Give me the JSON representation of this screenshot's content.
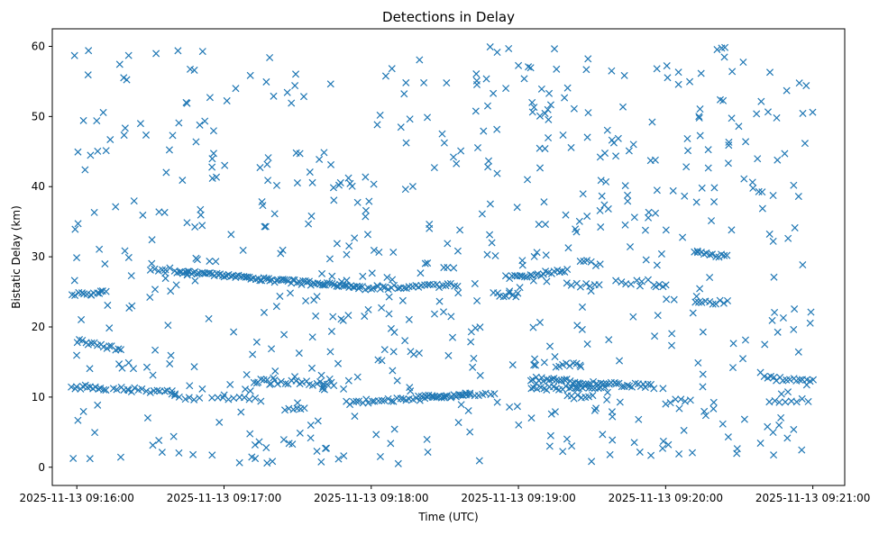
{
  "chart_data": {
    "type": "scatter",
    "title": "Detections in Delay",
    "xlabel": "Time (UTC)",
    "ylabel": "Bistatic Delay (km)",
    "marker": "x",
    "color": "#1f77b4",
    "grid": false,
    "xlim": [
      "2025-11-13T09:15:50",
      "2025-11-13T09:21:13"
    ],
    "ylim": [
      -2.6,
      62.5
    ],
    "x_ticks": [
      {
        "t": "2025-11-13T09:16:00",
        "label": "2025-11-13 09:16:00"
      },
      {
        "t": "2025-11-13T09:17:00",
        "label": "2025-11-13 09:17:00"
      },
      {
        "t": "2025-11-13T09:18:00",
        "label": "2025-11-13 09:18:00"
      },
      {
        "t": "2025-11-13T09:19:00",
        "label": "2025-11-13 09:19:00"
      },
      {
        "t": "2025-11-13T09:20:00",
        "label": "2025-11-13 09:20:00"
      },
      {
        "t": "2025-11-13T09:21:00",
        "label": "2025-11-13 09:21:00"
      }
    ],
    "y_ticks": [
      0,
      10,
      20,
      30,
      40,
      50,
      60
    ],
    "tracks": [
      {
        "t_start": "2025-11-13T09:15:58",
        "t_end": "2025-11-13T09:16:12",
        "y_start": 24.6,
        "y_end": 24.9,
        "points": 12
      },
      {
        "t_start": "2025-11-13T09:16:30",
        "t_end": "2025-11-13T09:16:38",
        "y_start": 28.1,
        "y_end": 28.2,
        "points": 6
      },
      {
        "t_start": "2025-11-13T09:16:40",
        "t_end": "2025-11-13T09:17:55",
        "y_start": 27.9,
        "y_end": 25.6,
        "points": 90
      },
      {
        "t_start": "2025-11-13T09:17:55",
        "t_end": "2025-11-13T09:18:35",
        "y_start": 25.5,
        "y_end": 26.0,
        "points": 34
      },
      {
        "t_start": "2025-11-13T09:18:50",
        "t_end": "2025-11-13T09:19:00",
        "y_start": 24.6,
        "y_end": 24.6,
        "points": 9
      },
      {
        "t_start": "2025-11-13T09:18:55",
        "t_end": "2025-11-13T09:19:20",
        "y_start": 27.0,
        "y_end": 28.0,
        "points": 24
      },
      {
        "t_start": "2025-11-13T09:19:20",
        "t_end": "2025-11-13T09:19:33",
        "y_start": 26.1,
        "y_end": 25.8,
        "points": 8
      },
      {
        "t_start": "2025-11-13T09:19:40",
        "t_end": "2025-11-13T09:19:50",
        "y_start": 26.5,
        "y_end": 26.3,
        "points": 6
      },
      {
        "t_start": "2025-11-13T09:19:55",
        "t_end": "2025-11-13T09:20:00",
        "y_start": 26.0,
        "y_end": 26.0,
        "points": 5
      },
      {
        "t_start": "2025-11-13T09:20:12",
        "t_end": "2025-11-13T09:20:25",
        "y_start": 30.5,
        "y_end": 30.0,
        "points": 12
      },
      {
        "t_start": "2025-11-13T09:20:12",
        "t_end": "2025-11-13T09:20:25",
        "y_start": 23.3,
        "y_end": 23.6,
        "points": 10
      },
      {
        "t_start": "2025-11-13T09:19:25",
        "t_end": "2025-11-13T09:19:33",
        "y_start": 29.5,
        "y_end": 28.8,
        "points": 6
      },
      {
        "t_start": "2025-11-13T09:16:00",
        "t_end": "2025-11-13T09:16:18",
        "y_start": 18.0,
        "y_end": 16.8,
        "points": 16
      },
      {
        "t_start": "2025-11-13T09:15:58",
        "t_end": "2025-11-13T09:16:12",
        "y_start": 11.5,
        "y_end": 11.3,
        "points": 14
      },
      {
        "t_start": "2025-11-13T09:16:15",
        "t_end": "2025-11-13T09:16:40",
        "y_start": 11.2,
        "y_end": 10.7,
        "points": 18
      },
      {
        "t_start": "2025-11-13T09:16:40",
        "t_end": "2025-11-13T09:16:50",
        "y_start": 10.0,
        "y_end": 9.7,
        "points": 6
      },
      {
        "t_start": "2025-11-13T09:16:55",
        "t_end": "2025-11-13T09:17:15",
        "y_start": 10.0,
        "y_end": 9.5,
        "points": 10
      },
      {
        "t_start": "2025-11-13T09:17:12",
        "t_end": "2025-11-13T09:17:45",
        "y_start": 12.3,
        "y_end": 11.8,
        "points": 24
      },
      {
        "t_start": "2025-11-13T09:17:25",
        "t_end": "2025-11-13T09:17:33",
        "y_start": 8.4,
        "y_end": 8.2,
        "points": 6
      },
      {
        "t_start": "2025-11-13T09:17:50",
        "t_end": "2025-11-13T09:18:40",
        "y_start": 9.2,
        "y_end": 10.4,
        "points": 40
      },
      {
        "t_start": "2025-11-13T09:18:20",
        "t_end": "2025-11-13T09:18:50",
        "y_start": 9.8,
        "y_end": 10.4,
        "points": 20
      },
      {
        "t_start": "2025-11-13T09:19:05",
        "t_end": "2025-11-13T09:19:55",
        "y_start": 12.6,
        "y_end": 11.5,
        "points": 48
      },
      {
        "t_start": "2025-11-13T09:19:05",
        "t_end": "2025-11-13T09:19:35",
        "y_start": 11.2,
        "y_end": 11.4,
        "points": 24
      },
      {
        "t_start": "2025-11-13T09:19:15",
        "t_end": "2025-11-13T09:19:25",
        "y_start": 14.5,
        "y_end": 14.7,
        "points": 8
      },
      {
        "t_start": "2025-11-13T09:19:20",
        "t_end": "2025-11-13T09:19:30",
        "y_start": 10.0,
        "y_end": 10.2,
        "points": 8
      },
      {
        "t_start": "2025-11-13T09:20:00",
        "t_end": "2025-11-13T09:20:10",
        "y_start": 9.3,
        "y_end": 9.7,
        "points": 6
      },
      {
        "t_start": "2025-11-13T09:20:40",
        "t_end": "2025-11-13T09:21:00",
        "y_start": 12.7,
        "y_end": 12.4,
        "points": 16
      },
      {
        "t_start": "2025-11-13T09:20:42",
        "t_end": "2025-11-13T09:20:58",
        "y_start": 9.4,
        "y_end": 9.6,
        "points": 8
      }
    ],
    "clutter": {
      "t_start": "2025-11-13T09:15:58",
      "t_end": "2025-11-13T09:21:00",
      "y_range": [
        0.5,
        60
      ],
      "points": 620
    }
  }
}
